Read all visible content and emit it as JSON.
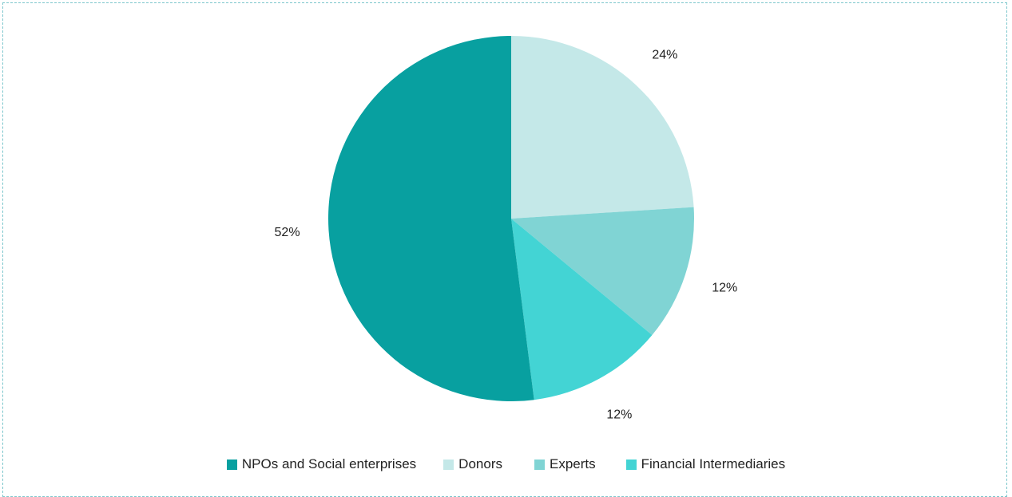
{
  "chart_data": {
    "type": "pie",
    "title": "",
    "slices": [
      {
        "label": "Donors",
        "value": 24,
        "display": "24%",
        "color": "#c4e8e8"
      },
      {
        "label": "Experts",
        "value": 12,
        "display": "12%",
        "color": "#80d4d4"
      },
      {
        "label": "Financial Intermediaries",
        "value": 12,
        "display": "12%",
        "color": "#43d4d4"
      },
      {
        "label": "NPOs and Social enterprises",
        "value": 52,
        "display": "52%",
        "color": "#08a0a0"
      }
    ],
    "start_angle_deg": 0,
    "direction": "clockwise",
    "legend": {
      "position": "bottom",
      "items": [
        {
          "label": "NPOs and Social enterprises",
          "color": "#08a0a0"
        },
        {
          "label": "Donors",
          "color": "#c4e8e8"
        },
        {
          "label": "Experts",
          "color": "#80d4d4"
        },
        {
          "label": "Financial Intermediaries",
          "color": "#43d4d4"
        }
      ]
    }
  }
}
